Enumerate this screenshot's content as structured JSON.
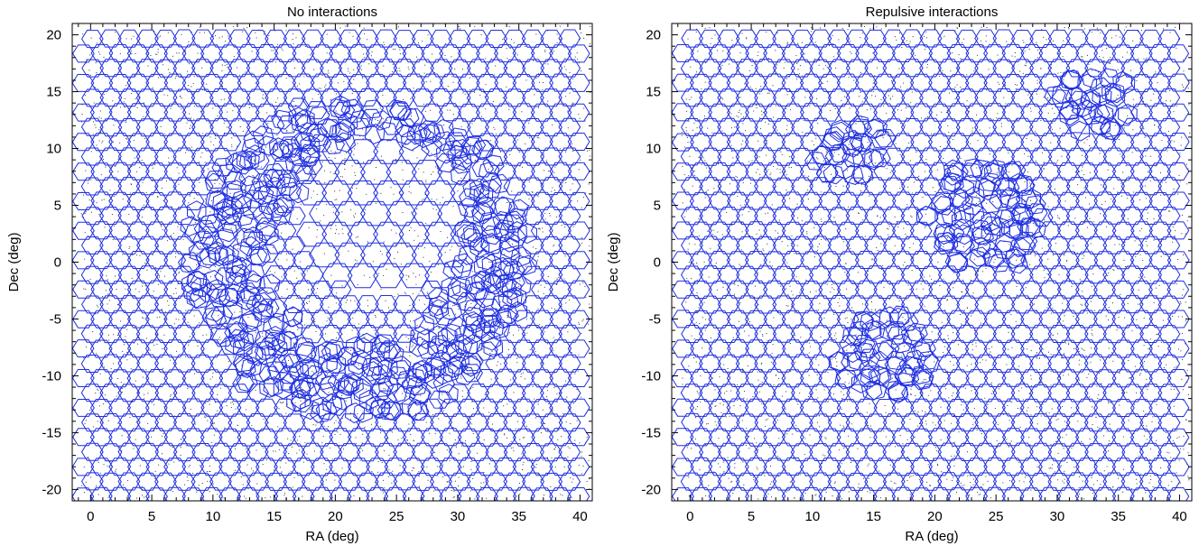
{
  "colors": {
    "hexagon": "#1f2fe0",
    "dots": "#333333",
    "frame": "#000000"
  },
  "chart_data": [
    {
      "type": "scatter",
      "title": "No interactions",
      "xlabel": "RA  (deg)",
      "ylabel": "Dec  (deg)",
      "xlim": [
        -1.5,
        41.0
      ],
      "ylim": [
        -21.0,
        21.0
      ],
      "xticks": [
        0,
        5,
        10,
        15,
        20,
        25,
        30,
        35,
        40
      ],
      "yticks": [
        -20,
        -15,
        -10,
        -5,
        0,
        5,
        10,
        15,
        20
      ],
      "xtick_labels": [
        "0",
        "5",
        "10",
        "15",
        "20",
        "25",
        "30",
        "35",
        "40"
      ],
      "ytick_labels": [
        "-20",
        "-15",
        "-10",
        "-5",
        "0",
        "5",
        "10",
        "15",
        "20"
      ],
      "marker": "hexagon",
      "grid": false,
      "layout": {
        "field": {
          "ra": [
            0,
            40
          ],
          "dec": [
            -20,
            20
          ]
        },
        "tile_spacing_deg": 1.5,
        "perturbed_regions": [
          {
            "kind": "ring",
            "center": [
              22,
              0
            ],
            "radius_inner": 7.5,
            "radius_outer": 14
          }
        ],
        "wide_spacing_regions": [
          {
            "center": [
              24,
              4
            ],
            "radius": 7,
            "spacing_deg": 2.1
          }
        ]
      }
    },
    {
      "type": "scatter",
      "title": "Repulsive interactions",
      "xlabel": "RA  (deg)",
      "ylabel": "Dec  (deg)",
      "xlim": [
        -1.5,
        41.0
      ],
      "ylim": [
        -21.0,
        21.0
      ],
      "xticks": [
        0,
        5,
        10,
        15,
        20,
        25,
        30,
        35,
        40
      ],
      "yticks": [
        -20,
        -15,
        -10,
        -5,
        0,
        5,
        10,
        15,
        20
      ],
      "xtick_labels": [
        "0",
        "5",
        "10",
        "15",
        "20",
        "25",
        "30",
        "35",
        "40"
      ],
      "ytick_labels": [
        "-20",
        "-15",
        "-10",
        "-5",
        "0",
        "5",
        "10",
        "15",
        "20"
      ],
      "marker": "hexagon",
      "grid": false,
      "layout": {
        "field": {
          "ra": [
            0,
            40
          ],
          "dec": [
            -20,
            20
          ]
        },
        "tile_spacing_deg": 1.5,
        "perturbed_regions": [
          {
            "kind": "blob",
            "center": [
              24,
              4
            ],
            "radius": 5
          },
          {
            "kind": "blob",
            "center": [
              13,
              10
            ],
            "radius": 3
          },
          {
            "kind": "blob",
            "center": [
              16,
              -8
            ],
            "radius": 4
          },
          {
            "kind": "blob",
            "center": [
              33,
              14
            ],
            "radius": 3
          }
        ],
        "wide_spacing_regions": []
      }
    }
  ]
}
